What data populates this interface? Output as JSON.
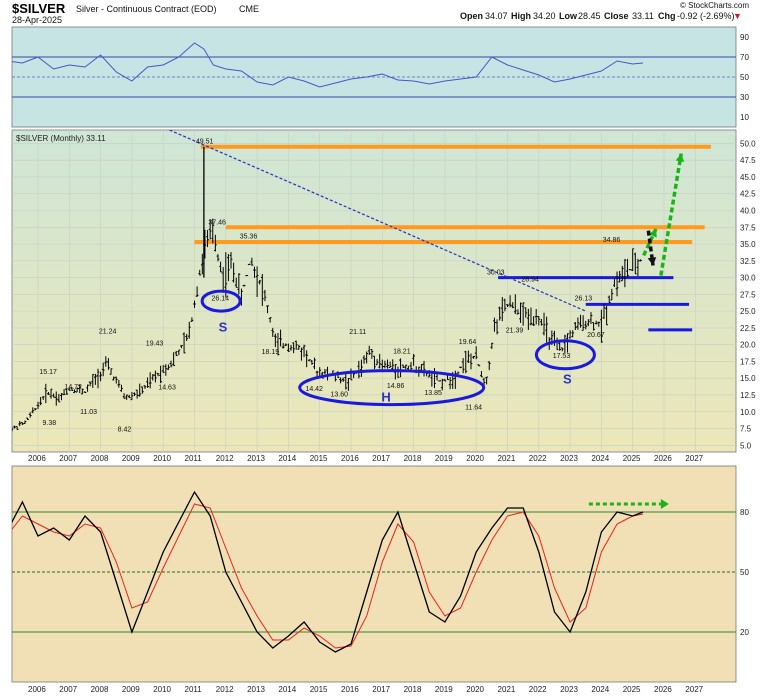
{
  "header": {
    "symbol": "$SILVER",
    "description": "Silver - Continuous Contract (EOD)",
    "exchange": "CME",
    "date": "28-Apr-2025",
    "open_label": "Open",
    "open": "34.07",
    "high_label": "High",
    "high": "34.20",
    "low_label": "Low",
    "low": "28.45",
    "close_label": "Close",
    "close": "33.11",
    "chg_label": "Chg",
    "chg": "-0.92 (-2.69%)",
    "chg_arrow": "▼",
    "copyright": "© StockCharts.com"
  },
  "legend": "$SILVER (Monthly) 33.11",
  "colors": {
    "panel_top": "#c6e4e4",
    "panel_main_top": "#cfe6d6",
    "panel_main_bottom": "#ece7b8",
    "panel_bottom": "#f1dfb5",
    "price": "#000000",
    "rsi": "#4755c8",
    "orange": "#ff9a1e",
    "blue": "#1a1adf",
    "green": "#18b418",
    "stoch_signal": "#e8231c"
  },
  "chart_data": [
    {
      "type": "line",
      "name": "rsi",
      "y_ticks": [
        "90",
        "70",
        "50",
        "30",
        "10"
      ],
      "reference_lines": [
        70,
        50,
        30
      ],
      "ylim": [
        0,
        100
      ],
      "x": [
        2005.0,
        2005.5,
        2006.0,
        2006.5,
        2007.0,
        2007.5,
        2008.0,
        2008.5,
        2009.0,
        2009.5,
        2010.0,
        2010.5,
        2011.0,
        2011.3,
        2011.6,
        2012.0,
        2012.5,
        2013.0,
        2013.5,
        2014.0,
        2014.5,
        2015.0,
        2015.5,
        2016.0,
        2016.5,
        2017.0,
        2017.5,
        2018.0,
        2018.5,
        2019.0,
        2019.5,
        2020.0,
        2020.5,
        2021.0,
        2021.5,
        2022.0,
        2022.5,
        2023.0,
        2023.5,
        2024.0,
        2024.5,
        2025.0,
        2025.33
      ],
      "values": [
        66,
        64,
        70,
        58,
        62,
        60,
        72,
        55,
        46,
        60,
        62,
        70,
        84,
        78,
        62,
        58,
        56,
        45,
        42,
        50,
        46,
        40,
        44,
        48,
        50,
        53,
        47,
        46,
        43,
        46,
        48,
        50,
        70,
        62,
        57,
        52,
        45,
        48,
        52,
        56,
        66,
        63,
        64
      ]
    },
    {
      "type": "bar",
      "name": "$SILVER",
      "y_ticks": [
        "50.0",
        "47.5",
        "45.0",
        "42.5",
        "40.0",
        "37.5",
        "35.0",
        "32.5",
        "30.0",
        "27.5",
        "25.0",
        "22.5",
        "20.0",
        "17.5",
        "15.0",
        "12.5",
        "10.0",
        "7.5",
        "5.0"
      ],
      "ylim": [
        4,
        52
      ],
      "x_ticks": [
        "2006",
        "2007",
        "2008",
        "2009",
        "2010",
        "2011",
        "2012",
        "2013",
        "2014",
        "2015",
        "2016",
        "2017",
        "2018",
        "2019",
        "2020",
        "2021",
        "2022",
        "2023",
        "2024",
        "2025",
        "2026",
        "2027"
      ],
      "x": [
        2005.0,
        2005.6,
        2006.3,
        2006.7,
        2007.0,
        2007.5,
        2008.2,
        2008.8,
        2009.3,
        2009.8,
        2010.3,
        2010.8,
        2011.3,
        2011.6,
        2011.9,
        2012.2,
        2012.5,
        2012.8,
        2013.2,
        2013.6,
        2014.0,
        2014.5,
        2014.9,
        2015.4,
        2015.9,
        2016.3,
        2016.6,
        2017.0,
        2017.5,
        2018.0,
        2018.5,
        2018.8,
        2019.3,
        2019.6,
        2020.0,
        2020.3,
        2020.6,
        2021.0,
        2021.5,
        2022.0,
        2022.4,
        2022.7,
        2023.1,
        2023.5,
        2024.0,
        2024.4,
        2024.8,
        2025.1,
        2025.33
      ],
      "values": [
        7,
        8.4,
        13,
        12,
        13.5,
        13,
        17,
        12,
        13,
        15.5,
        17.5,
        21,
        34,
        37,
        30,
        32,
        27,
        33,
        28,
        20,
        20,
        19,
        16,
        15.5,
        14.5,
        16.5,
        19,
        17,
        16.5,
        17,
        15.5,
        14.5,
        15,
        17.5,
        18,
        14,
        23,
        26,
        24.5,
        24,
        20.5,
        19,
        22,
        23.5,
        23,
        29,
        31,
        31.5,
        33.11
      ],
      "data_labels": [
        {
          "text": "9.38",
          "x": 2006.4,
          "y": 9.38
        },
        {
          "text": "15.17",
          "x": 2006.3,
          "y": 15.17
        },
        {
          "text": "14.72",
          "x": 2007.1,
          "y": 14.72
        },
        {
          "text": "11.03",
          "x": 2007.6,
          "y": 11.03
        },
        {
          "text": "21.24",
          "x": 2008.2,
          "y": 21.24
        },
        {
          "text": "8.42",
          "x": 2008.8,
          "y": 8.42
        },
        {
          "text": "19.43",
          "x": 2009.7,
          "y": 19.43
        },
        {
          "text": "14.63",
          "x": 2010.1,
          "y": 14.63
        },
        {
          "text": "49.51",
          "x": 2011.3,
          "y": 49.51
        },
        {
          "text": "37.46",
          "x": 2011.7,
          "y": 37.46
        },
        {
          "text": "35.36",
          "x": 2012.7,
          "y": 35.36
        },
        {
          "text": "26.14",
          "x": 2011.8,
          "y": 26.14
        },
        {
          "text": "18.19",
          "x": 2013.4,
          "y": 18.19
        },
        {
          "text": "14.42",
          "x": 2014.8,
          "y": 14.42
        },
        {
          "text": "13.60",
          "x": 2015.6,
          "y": 13.6
        },
        {
          "text": "21.11",
          "x": 2016.2,
          "y": 21.11
        },
        {
          "text": "18.21",
          "x": 2017.6,
          "y": 18.21
        },
        {
          "text": "14.86",
          "x": 2017.4,
          "y": 14.86
        },
        {
          "text": "13.85",
          "x": 2018.6,
          "y": 13.85
        },
        {
          "text": "19.64",
          "x": 2019.7,
          "y": 19.64
        },
        {
          "text": "11.64",
          "x": 2019.9,
          "y": 11.64
        },
        {
          "text": "30.03",
          "x": 2020.6,
          "y": 30.03
        },
        {
          "text": "28.94",
          "x": 2021.7,
          "y": 28.94
        },
        {
          "text": "21.39",
          "x": 2021.2,
          "y": 21.39
        },
        {
          "text": "26.13",
          "x": 2023.4,
          "y": 26.13
        },
        {
          "text": "17.53",
          "x": 2022.7,
          "y": 17.53
        },
        {
          "text": "20.67",
          "x": 2023.8,
          "y": 20.67
        },
        {
          "text": "34.86",
          "x": 2024.3,
          "y": 34.86
        }
      ],
      "annotations": [
        {
          "text": "S",
          "x": 2011.9,
          "y": 22
        },
        {
          "text": "H",
          "x": 2017.1,
          "y": 11.5
        },
        {
          "text": "S",
          "x": 2022.9,
          "y": 14.2
        }
      ],
      "horizontal_levels_orange": [
        49.5,
        37.5,
        35.3
      ],
      "horizontal_levels_blue": [
        30,
        26,
        22.2
      ],
      "downtrend_line": [
        {
          "x": 2010.2,
          "y": 52
        },
        {
          "x": 2023.5,
          "y": 25
        }
      ]
    },
    {
      "type": "line",
      "name": "stochastic",
      "y_ticks": [
        "80",
        "50",
        "20"
      ],
      "reference_lines": [
        80,
        50,
        20
      ],
      "ylim": [
        0,
        100
      ],
      "x": [
        2005.0,
        2005.5,
        2006.0,
        2006.5,
        2007.0,
        2007.5,
        2008.0,
        2008.5,
        2009.0,
        2009.5,
        2010.0,
        2010.5,
        2011.0,
        2011.5,
        2012.0,
        2012.5,
        2013.0,
        2013.5,
        2014.0,
        2014.5,
        2015.0,
        2015.5,
        2016.0,
        2016.5,
        2017.0,
        2017.5,
        2018.0,
        2018.5,
        2019.0,
        2019.5,
        2020.0,
        2020.5,
        2021.0,
        2021.5,
        2022.0,
        2022.5,
        2023.0,
        2023.5,
        2024.0,
        2024.5,
        2025.0,
        2025.33
      ],
      "k": [
        70,
        85,
        68,
        72,
        66,
        78,
        70,
        45,
        20,
        40,
        60,
        75,
        90,
        78,
        50,
        35,
        20,
        12,
        18,
        25,
        15,
        10,
        14,
        40,
        66,
        80,
        55,
        30,
        25,
        38,
        60,
        72,
        82,
        82,
        60,
        30,
        20,
        40,
        70,
        80,
        78,
        80
      ],
      "d": [
        68,
        78,
        74,
        70,
        68,
        74,
        72,
        55,
        32,
        35,
        52,
        68,
        84,
        82,
        62,
        42,
        28,
        16,
        16,
        22,
        18,
        12,
        13,
        28,
        55,
        74,
        65,
        40,
        28,
        32,
        50,
        66,
        78,
        80,
        68,
        42,
        25,
        32,
        60,
        74,
        78,
        79
      ]
    }
  ]
}
